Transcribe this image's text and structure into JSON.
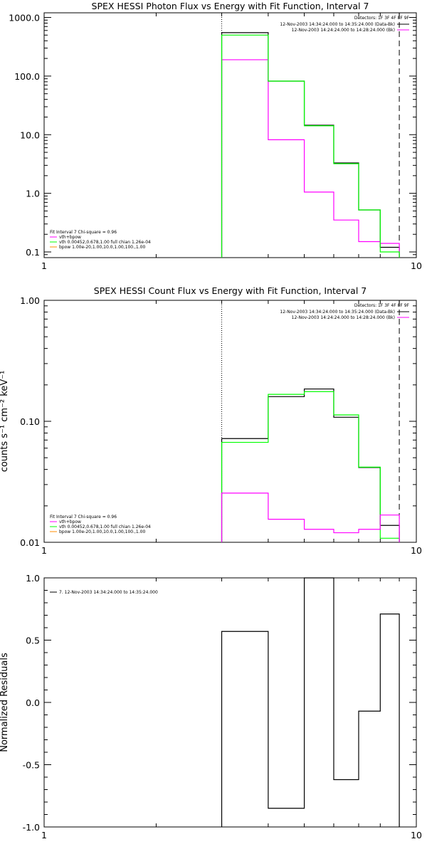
{
  "colors": {
    "data": "#000000",
    "model_total": "#ff00ff",
    "vth": "#00ff00",
    "bpow": "#ff8c00",
    "axis": "#000000"
  },
  "chart_data": [
    {
      "type": "line",
      "title": "SPEX HESSI Photon Flux vs Energy with Fit Function, Interval 7",
      "xlabel": "",
      "ylabel": "",
      "xscale": "log",
      "yscale": "log",
      "xlim": [
        1,
        10
      ],
      "ylim": [
        0.08,
        1200
      ],
      "x_ticks": [
        {
          "value": 1,
          "label": "1"
        },
        {
          "value": 10,
          "label": "10"
        }
      ],
      "y_ticks": [
        {
          "value": 0.1,
          "label": "0.1"
        },
        {
          "value": 1,
          "label": "1.0"
        },
        {
          "value": 10,
          "label": "10.0"
        },
        {
          "value": 100,
          "label": "100.0"
        },
        {
          "value": 1000,
          "label": "1000.0"
        }
      ],
      "energy_bins": [
        3,
        4,
        5,
        6,
        7,
        8,
        9
      ],
      "vlines": [
        {
          "x": 3,
          "style": "dotted"
        },
        {
          "x": 9,
          "style": "dashed"
        }
      ],
      "series": [
        {
          "role": "data",
          "color": "#000000",
          "values": [
            550,
            82,
            14.5,
            3.3,
            0.52,
            0.12
          ]
        },
        {
          "role": "model_total",
          "color": "#ff00ff",
          "values": [
            190,
            8.2,
            1.05,
            0.35,
            0.15,
            0.14
          ]
        },
        {
          "role": "vth",
          "color": "#00ff00",
          "values": [
            500,
            82,
            14.2,
            3.2,
            0.52,
            0.1
          ]
        }
      ],
      "info": {
        "detectors": "Detectors: 1F 3F 4F 8F 9F",
        "line1": "12-Nov-2003 14:34:24.000 to 14:35:24.000 (Data-Bk)",
        "line2": "12-Nov-2003 14:24:24.000 to 14:28:24.000 (Bk)"
      },
      "legend": {
        "header": "Fit Interval  7    Chi-square = 0.96",
        "entries": [
          {
            "text": "vth+bpow",
            "color": "#ff00ff"
          },
          {
            "text": "vth 0.00452,0.678,1.00   full chian 1.26e-04",
            "color": "#00ff00"
          },
          {
            "text": "bpow 1.00e-20,1.00,10.0,1.00,100.,1.00",
            "color": "#ff8c00"
          }
        ]
      }
    },
    {
      "type": "line",
      "title": "SPEX HESSI Count Flux vs Energy with Fit Function, Interval 7",
      "xlabel": "",
      "ylabel": "counts s⁻¹ cm⁻² keV⁻¹",
      "xscale": "log",
      "yscale": "log",
      "xlim": [
        1,
        10
      ],
      "ylim": [
        0.01,
        1.0
      ],
      "x_ticks": [
        {
          "value": 1,
          "label": "1"
        },
        {
          "value": 10,
          "label": "10"
        }
      ],
      "y_ticks": [
        {
          "value": 0.01,
          "label": "0.01"
        },
        {
          "value": 0.1,
          "label": "0.10"
        },
        {
          "value": 1,
          "label": "1.00"
        }
      ],
      "energy_bins": [
        3,
        4,
        5,
        6,
        7,
        8,
        9
      ],
      "vlines": [
        {
          "x": 3,
          "style": "dotted"
        },
        {
          "x": 9,
          "style": "dashed"
        }
      ],
      "series": [
        {
          "role": "data",
          "color": "#000000",
          "values": [
            0.072,
            0.16,
            0.185,
            0.108,
            0.0415,
            0.0138
          ]
        },
        {
          "role": "vth",
          "color": "#00ff00",
          "values": [
            0.067,
            0.167,
            0.176,
            0.113,
            0.0418,
            0.0108
          ]
        },
        {
          "role": "model_total",
          "color": "#ff00ff",
          "values": [
            0.0255,
            0.0155,
            0.0128,
            0.012,
            0.0128,
            0.0168
          ]
        }
      ],
      "info": {
        "detectors": "Detectors: 1F 3F 4F 8F 9F",
        "line1": "12-Nov-2003 14:34:24.000 to 14:35:24.000 (Data-Bk)",
        "line2": "12-Nov-2003 14:24:24.000 to 14:28:24.000 (Bk)"
      },
      "legend": {
        "header": "Fit Interval  7    Chi-square = 0.96",
        "entries": [
          {
            "text": "vth+bpow",
            "color": "#ff00ff"
          },
          {
            "text": "vth 0.00452,0.678,1.00   full chian 1.26e-04",
            "color": "#00ff00"
          },
          {
            "text": "bpow 1.00e-20,1.00,10.0,1.00,100.,1.00",
            "color": "#ff8c00"
          }
        ]
      }
    },
    {
      "type": "line",
      "title": "",
      "xlabel": "",
      "ylabel": "Normalized Residuals",
      "xscale": "log",
      "yscale": "linear",
      "xlim": [
        1,
        10
      ],
      "ylim": [
        -1.0,
        1.0
      ],
      "x_ticks": [
        {
          "value": 1,
          "label": "1"
        },
        {
          "value": 10,
          "label": "10"
        }
      ],
      "y_ticks": [
        {
          "value": -1.0,
          "label": "-1.0"
        },
        {
          "value": -0.5,
          "label": "-0.5"
        },
        {
          "value": 0.0,
          "label": "0.0"
        },
        {
          "value": 0.5,
          "label": "0.5"
        },
        {
          "value": 1.0,
          "label": "1.0"
        }
      ],
      "energy_bins": [
        3,
        4,
        5,
        6,
        7,
        8,
        9
      ],
      "vlines": [],
      "series": [
        {
          "role": "residuals",
          "color": "#000000",
          "values": [
            0.57,
            -0.85,
            1.0,
            -0.62,
            -0.07,
            0.71
          ]
        }
      ],
      "legend": {
        "header": "",
        "entries": [
          {
            "text": "7. 12-Nov-2003 14:34:24.000 to 14:35:24.000",
            "color": "#000000"
          }
        ]
      }
    }
  ]
}
